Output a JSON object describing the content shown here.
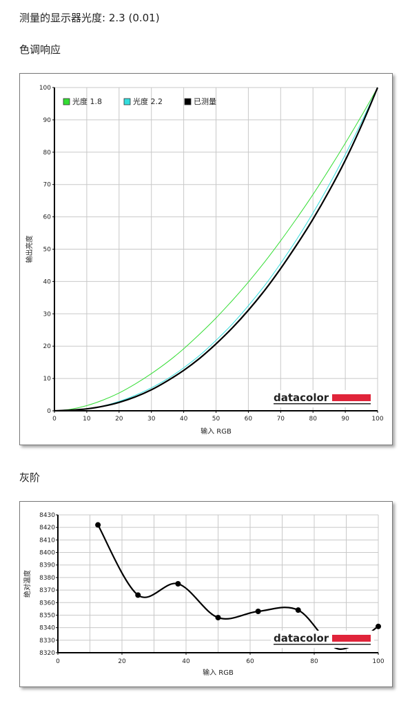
{
  "header": {
    "gamma_measured_label": "测量的显示器光度:",
    "gamma_measured_value": "2.3 (0.01)"
  },
  "sections": {
    "tone_response": "色调响应",
    "grayscale": "灰阶"
  },
  "logo_text": "datacolor",
  "colors": {
    "gamma18": "#33dd33",
    "gamma22": "#33dddd",
    "measured": "#000000",
    "logo_bar": "#e0243a",
    "grid": "#c8c8c8"
  },
  "chart_data": [
    {
      "type": "line",
      "title": "",
      "xlabel": "输入 RGB",
      "ylabel": "输出亮度",
      "xlim": [
        0,
        100
      ],
      "ylim": [
        0,
        100
      ],
      "x_ticks": [
        0,
        10,
        20,
        30,
        40,
        50,
        60,
        70,
        80,
        90,
        100
      ],
      "y_ticks": [
        0,
        10,
        20,
        30,
        40,
        50,
        60,
        70,
        80,
        90,
        100
      ],
      "grid": true,
      "legend_position": "top-left",
      "x": [
        0,
        5,
        10,
        15,
        20,
        25,
        30,
        35,
        40,
        45,
        50,
        55,
        60,
        65,
        70,
        75,
        80,
        85,
        90,
        95,
        100
      ],
      "series": [
        {
          "name": "光度 1.8",
          "color": "#33dd33",
          "values": [
            0,
            0.5,
            1.6,
            3.3,
            5.5,
            8.3,
            11.5,
            15.1,
            19.2,
            23.8,
            28.7,
            34.1,
            39.8,
            46.0,
            52.6,
            59.6,
            66.9,
            74.7,
            82.8,
            91.2,
            100
          ]
        },
        {
          "name": "光度 2.2",
          "color": "#33dddd",
          "values": [
            0,
            0.1,
            0.6,
            1.5,
            2.9,
            4.8,
            7.1,
            9.9,
            13.3,
            17.2,
            21.8,
            26.8,
            32.5,
            38.7,
            45.6,
            53.1,
            61.2,
            69.9,
            79.3,
            89.3,
            100
          ]
        },
        {
          "name": "已测量",
          "color": "#000000",
          "values": [
            0,
            0.2,
            0.6,
            1.4,
            2.6,
            4.3,
            6.5,
            9.3,
            12.5,
            16.3,
            20.7,
            25.6,
            31.1,
            37.2,
            44.0,
            51.4,
            59.3,
            68.0,
            77.5,
            88.2,
            100
          ]
        }
      ]
    },
    {
      "type": "line",
      "title": "",
      "xlabel": "输入 RGB",
      "ylabel": "绝对温度",
      "xlim": [
        0,
        100
      ],
      "ylim": [
        8320,
        8430
      ],
      "x_ticks": [
        0,
        20,
        40,
        60,
        80,
        100
      ],
      "y_ticks": [
        8320,
        8330,
        8340,
        8350,
        8360,
        8370,
        8380,
        8390,
        8400,
        8410,
        8420,
        8430
      ],
      "grid": true,
      "series": [
        {
          "color": "#000000",
          "x": [
            12.5,
            25,
            37.5,
            50,
            62.5,
            75,
            87.5,
            100
          ],
          "values": [
            8422,
            8366,
            8375,
            8348,
            8353,
            8354,
            8323,
            8341
          ]
        }
      ]
    }
  ]
}
